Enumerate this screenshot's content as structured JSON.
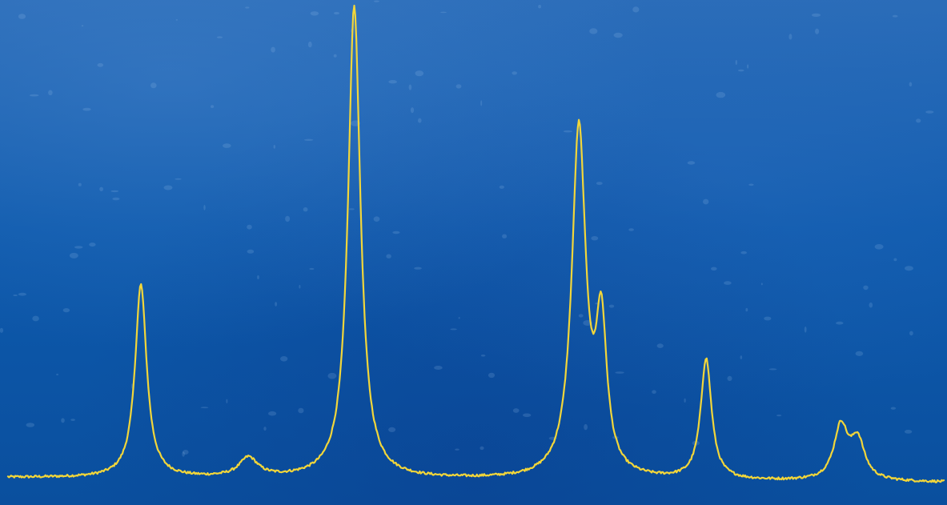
{
  "chart_data": {
    "type": "line",
    "title": "",
    "xlabel": "",
    "ylabel": "",
    "grid": false,
    "legend": "none",
    "xlim": [
      0,
      100
    ],
    "ylim": [
      0,
      100
    ],
    "baseline_start": 3,
    "baseline_end": 2,
    "peaks": [
      {
        "center": 14.2,
        "height": 40,
        "width": 0.75
      },
      {
        "center": 25.7,
        "height": 4,
        "width": 1.2
      },
      {
        "center": 37.0,
        "height": 98,
        "width": 0.8
      },
      {
        "center": 61.0,
        "height": 72,
        "width": 0.9
      },
      {
        "center": 63.4,
        "height": 30,
        "width": 0.7
      },
      {
        "center": 74.6,
        "height": 25,
        "width": 0.7
      },
      {
        "center": 89.0,
        "height": 11,
        "width": 0.9
      },
      {
        "center": 90.8,
        "height": 8,
        "width": 0.9
      }
    ],
    "series": [
      {
        "color": "#f2d63a"
      }
    ]
  },
  "colors": {
    "background": "#0b55a8",
    "trace": "#f2d63a"
  }
}
